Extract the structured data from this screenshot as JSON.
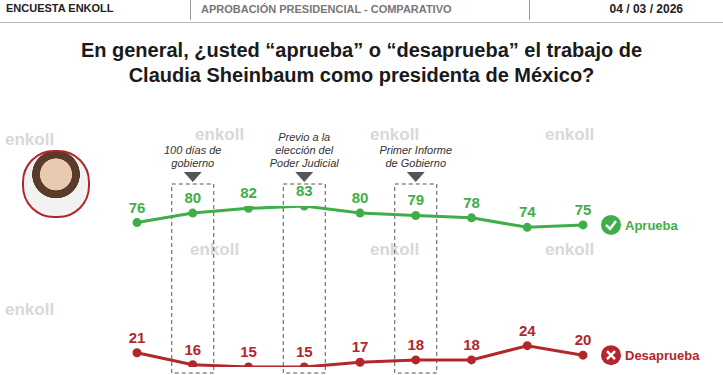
{
  "header": {
    "source": "ENCUESTA ENKOLL",
    "section": "APROBACIÓN PRESIDENCIAL - COMPARATIVO",
    "date": "04 / 03 / 2026"
  },
  "watermark": "enkoll",
  "chart_data": {
    "type": "line",
    "title": "En general, ¿usted “aprueba” o “desaprueba” el trabajo de Claudia Sheinbaum como presidenta de México?",
    "categories": [
      null,
      null,
      null,
      null,
      null,
      null,
      null,
      null,
      null
    ],
    "series": [
      {
        "name": "Aprueba",
        "color": "#3fae49",
        "marker": "circle",
        "values": [
          76,
          80,
          82,
          83,
          80,
          79,
          78,
          74,
          75
        ]
      },
      {
        "name": "Desaprueba",
        "color": "#b3262b",
        "marker": "circle",
        "values": [
          21,
          16,
          15,
          15,
          17,
          18,
          18,
          24,
          20
        ]
      }
    ],
    "annotations": [
      {
        "category_index": 1,
        "text": "100 días de gobierno"
      },
      {
        "category_index": 3,
        "text": "Previo a la elección del Poder Judicial"
      },
      {
        "category_index": 5,
        "text": "Primer Informe de Gobierno"
      }
    ],
    "data_labels": true,
    "tick_labels": false,
    "grid": false,
    "legend": "right"
  }
}
